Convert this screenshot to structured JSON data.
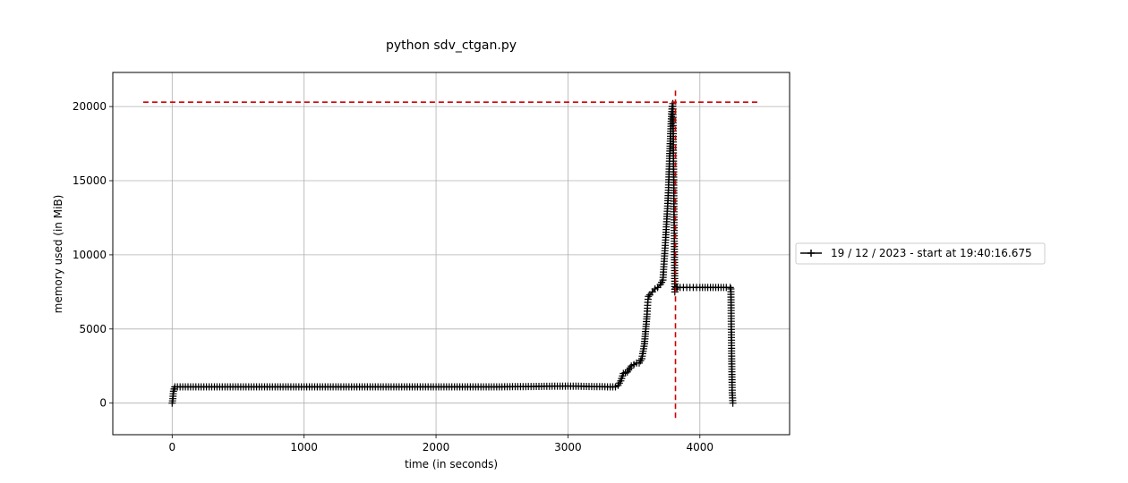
{
  "chart_data": {
    "type": "line",
    "title": "python sdv_ctgan.py",
    "xlabel": "time (in seconds)",
    "ylabel": "memory used (in MiB)",
    "xlim": [
      -450,
      4680
    ],
    "ylim": [
      -2130,
      22300
    ],
    "xticks": [
      0,
      1000,
      2000,
      3000,
      4000
    ],
    "yticks": [
      0,
      5000,
      10000,
      15000,
      20000
    ],
    "grid": true,
    "legend_position": "center-left outside right",
    "series": [
      {
        "name": "19 / 12 / 2023 - start at 19:40:16.675",
        "color": "#000000",
        "marker": "+",
        "x": [
          0,
          5,
          10,
          20,
          40,
          100,
          300,
          600,
          1000,
          1500,
          2000,
          2500,
          3000,
          3300,
          3360,
          3380,
          3400,
          3420,
          3450,
          3480,
          3500,
          3520,
          3540,
          3560,
          3580,
          3590,
          3600,
          3605,
          3610,
          3620,
          3640,
          3660,
          3680,
          3700,
          3720,
          3740,
          3760,
          3770,
          3775,
          3780,
          3785,
          3790,
          3795,
          3800,
          3805,
          3810,
          3815,
          3820,
          3830,
          3850,
          3900,
          3950,
          4000,
          4100,
          4200,
          4230,
          4235,
          4240,
          4245,
          4250
        ],
        "y": [
          0,
          300,
          800,
          1100,
          1100,
          1100,
          1100,
          1100,
          1100,
          1100,
          1100,
          1100,
          1150,
          1100,
          1100,
          1200,
          1500,
          2000,
          2100,
          2500,
          2600,
          2700,
          2700,
          3000,
          4000,
          5000,
          6000,
          6800,
          7200,
          7300,
          7500,
          7700,
          7800,
          8000,
          8300,
          11000,
          14000,
          16500,
          17500,
          18500,
          19500,
          20000,
          20200,
          16500,
          12000,
          7500,
          7700,
          7800,
          7800,
          7800,
          7800,
          7800,
          7800,
          7800,
          7800,
          7800,
          7700,
          3700,
          700,
          0
        ]
      }
    ],
    "reference_lines": [
      {
        "orientation": "horizontal",
        "value": 20300,
        "from": -220,
        "to": 4450,
        "color": "#cc0000",
        "style": "dashed"
      },
      {
        "orientation": "vertical",
        "value": 3815,
        "from": -1000,
        "to": 21300,
        "color": "#cc0000",
        "style": "dashed"
      }
    ]
  }
}
